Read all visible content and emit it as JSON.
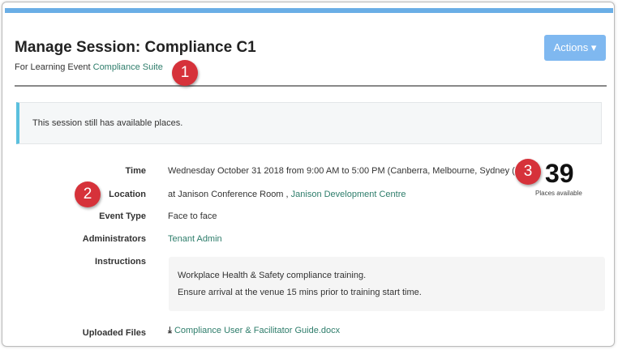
{
  "header": {
    "title": "Manage Session: Compliance C1",
    "subtitle_prefix": "For Learning Event ",
    "event_link": "Compliance Suite",
    "actions_label": "Actions ▾"
  },
  "alert": {
    "text": "This session still has available places."
  },
  "details": {
    "time_label": "Time",
    "time_value": "Wednesday October 31 2018 from 9:00 AM to 5:00 PM (Canberra, Melbourne, Sydney (",
    "location_label": "Location",
    "location_prefix": "at Janison Conference Room , ",
    "location_link": "Janison Development Centre",
    "event_type_label": "Event Type",
    "event_type_value": "Face to face",
    "administrators_label": "Administrators",
    "administrators_value": "Tenant Admin",
    "instructions_label": "Instructions",
    "instructions_lines": [
      "Workplace Health & Safety compliance training.",
      "Ensure arrival at the venue 15 mins prior to training start time."
    ],
    "files_label": "Uploaded Files",
    "file_name": "Compliance User & Facilitator Guide.docx"
  },
  "places": {
    "count": "39",
    "label": "Places available"
  },
  "callouts": [
    "1",
    "2",
    "3"
  ]
}
